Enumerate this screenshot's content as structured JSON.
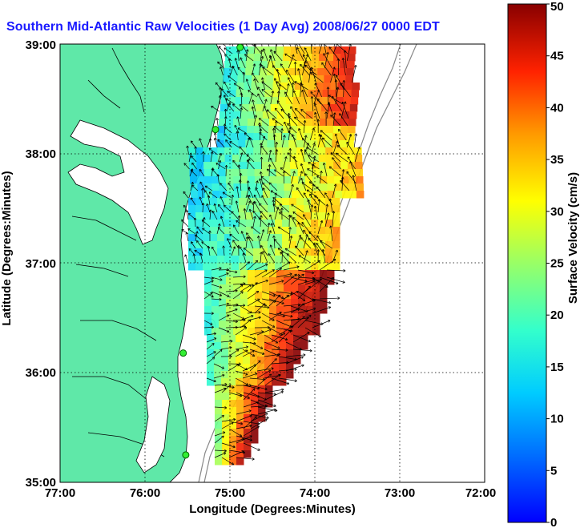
{
  "title": "Southern Mid-Atlantic Raw Velocities (1 Day Avg) 2008/06/27 0000 EDT",
  "map": {
    "xlabel": "Longitude (Degrees:Minutes)",
    "ylabel": "Latitude (Degrees:Minutes)",
    "x_ticks": [
      "77:00",
      "76:00",
      "75:00",
      "74:00",
      "73:00",
      "72:00"
    ],
    "y_ticks": [
      "39:00",
      "38:00",
      "37:00",
      "36:00",
      "35:00"
    ],
    "lon_range": [
      -77,
      -72
    ],
    "lat_range": [
      35,
      39
    ],
    "grid": "dotted",
    "land_color": "#5fe8a8",
    "stations": [
      {
        "lon": -74.88,
        "lat": 38.97
      },
      {
        "lon": -75.17,
        "lat": 38.22
      },
      {
        "lon": -75.55,
        "lat": 36.18
      },
      {
        "lon": -75.52,
        "lat": 35.25
      }
    ]
  },
  "colorbar": {
    "label": "Surface Velocity (cm/s)",
    "ticks": [
      "0",
      "5",
      "10",
      "15",
      "20",
      "25",
      "30",
      "35",
      "40",
      "45",
      "50"
    ],
    "min": 0,
    "max": 50,
    "colormap": "jet"
  }
}
